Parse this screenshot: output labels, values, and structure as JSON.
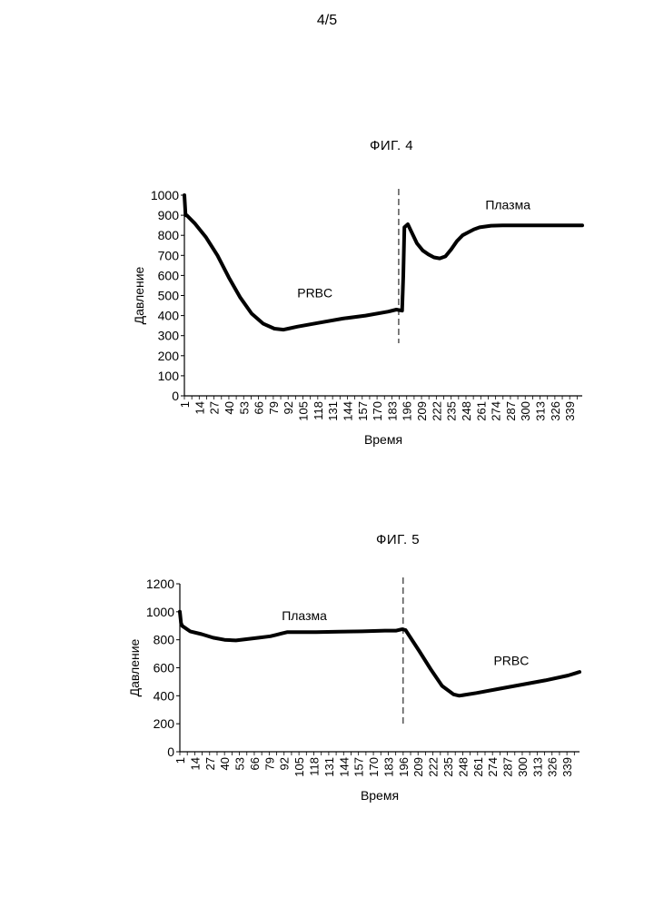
{
  "page": {
    "number": "4/5"
  },
  "chart_data": [
    {
      "type": "line",
      "title": "ФИГ. 4",
      "xlabel": "Время",
      "ylabel": "Давление",
      "ylim": [
        0,
        1000
      ],
      "yticks": [
        0,
        100,
        200,
        300,
        400,
        500,
        600,
        700,
        800,
        900,
        1000
      ],
      "xlim": [
        1,
        350
      ],
      "xticks": [
        "1",
        "14",
        "27",
        "40",
        "53",
        "66",
        "79",
        "92",
        "105",
        "118",
        "131",
        "144",
        "157",
        "170",
        "183",
        "196",
        "209",
        "222",
        "235",
        "248",
        "261",
        "274",
        "287",
        "300",
        "313",
        "326",
        "339"
      ],
      "divider_x": 189,
      "annotations": [
        {
          "text": "PRBC",
          "x": 100,
          "y": 490
        },
        {
          "text": "Плазма",
          "x": 265,
          "y": 930
        }
      ],
      "series": [
        {
          "x": [
            1,
            2,
            3,
            10,
            20,
            30,
            40,
            50,
            60,
            70,
            80,
            88,
            92,
            100,
            120,
            140,
            160,
            180,
            187,
            192,
            193,
            194,
            197,
            200,
            205,
            210,
            215,
            220,
            225,
            230,
            235,
            240,
            245,
            250,
            255,
            260,
            270,
            280,
            290,
            300,
            320,
            340,
            350
          ],
          "y": [
            1000,
            900,
            900,
            860,
            790,
            700,
            590,
            490,
            410,
            360,
            335,
            330,
            335,
            345,
            365,
            385,
            400,
            420,
            430,
            425,
            600,
            840,
            855,
            820,
            760,
            725,
            705,
            690,
            685,
            695,
            730,
            770,
            800,
            815,
            830,
            840,
            848,
            850,
            850,
            850,
            850,
            850,
            850
          ]
        }
      ]
    },
    {
      "type": "line",
      "title": "ФИГ. 5",
      "xlabel": "Время",
      "ylabel": "Давление",
      "ylim": [
        0,
        1200
      ],
      "yticks": [
        0,
        200,
        400,
        600,
        800,
        1000,
        1200
      ],
      "xlim": [
        1,
        350
      ],
      "xticks": [
        "1",
        "14",
        "27",
        "40",
        "53",
        "66",
        "79",
        "92",
        "105",
        "118",
        "131",
        "144",
        "157",
        "170",
        "183",
        "196",
        "209",
        "222",
        "235",
        "248",
        "261",
        "274",
        "287",
        "300",
        "313",
        "326",
        "339"
      ],
      "divider_x": 196,
      "annotations": [
        {
          "text": "Плазма",
          "x": 90,
          "y": 940
        },
        {
          "text": "PRBC",
          "x": 275,
          "y": 620
        }
      ],
      "series": [
        {
          "x": [
            1,
            2,
            3,
            10,
            20,
            30,
            40,
            50,
            60,
            70,
            80,
            85,
            90,
            95,
            100,
            120,
            140,
            160,
            180,
            190,
            195,
            198,
            210,
            220,
            230,
            240,
            245,
            260,
            280,
            300,
            320,
            340,
            350
          ],
          "y": [
            1000,
            920,
            900,
            860,
            840,
            815,
            800,
            795,
            805,
            815,
            825,
            835,
            845,
            855,
            855,
            855,
            858,
            860,
            865,
            865,
            875,
            870,
            720,
            590,
            470,
            410,
            400,
            420,
            450,
            480,
            510,
            545,
            570
          ]
        }
      ]
    }
  ]
}
